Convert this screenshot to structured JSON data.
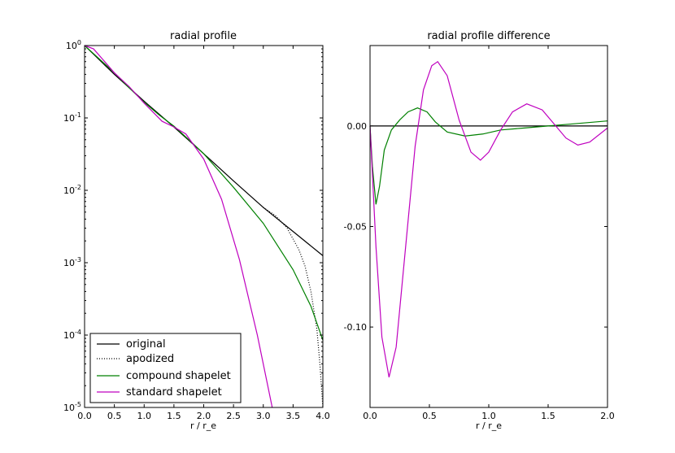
{
  "chart_data": [
    {
      "type": "line",
      "title": "radial profile",
      "xlabel": "r / r_e",
      "ylabel": "",
      "xlim": [
        0.0,
        4.0
      ],
      "ylim": [
        1e-05,
        1
      ],
      "yscale": "log",
      "grid": false,
      "legend_position": "bottom-left",
      "x_ticks": [
        "0.0",
        "0.5",
        "1.0",
        "1.5",
        "2.0",
        "2.5",
        "3.0",
        "3.5",
        "4.0"
      ],
      "y_ticks": [
        {
          "mant": "10",
          "exp": "0"
        },
        {
          "mant": "10",
          "exp": "-1"
        },
        {
          "mant": "10",
          "exp": "-2"
        },
        {
          "mant": "10",
          "exp": "-3"
        },
        {
          "mant": "10",
          "exp": "-4"
        },
        {
          "mant": "10",
          "exp": "-5"
        }
      ],
      "series": [
        {
          "name": "original",
          "color": "#000000",
          "style": "solid",
          "x": [
            0.0,
            0.5,
            1.0,
            1.5,
            2.0,
            2.5,
            3.0,
            3.5,
            4.0
          ],
          "y": [
            1.0,
            0.4,
            0.17,
            0.075,
            0.032,
            0.0135,
            0.0058,
            0.0027,
            0.00125
          ]
        },
        {
          "name": "apodized",
          "color": "#000000",
          "style": "dotted",
          "x": [
            3.0,
            3.2,
            3.4,
            3.6,
            3.7,
            3.8,
            3.9,
            3.95,
            4.0
          ],
          "y": [
            0.0058,
            0.0045,
            0.003,
            0.0015,
            0.0009,
            0.0004,
            0.00012,
            4e-05,
            1e-05
          ]
        },
        {
          "name": "compound shapelet",
          "color": "#008000",
          "style": "solid",
          "x": [
            0.0,
            0.25,
            0.5,
            0.75,
            1.0,
            1.25,
            1.5,
            1.75,
            2.0,
            2.5,
            3.0,
            3.5,
            3.8,
            4.0
          ],
          "y": [
            1.0,
            0.65,
            0.42,
            0.26,
            0.165,
            0.11,
            0.077,
            0.05,
            0.032,
            0.011,
            0.0035,
            0.0008,
            0.00025,
            8.5e-05
          ]
        },
        {
          "name": "standard shapelet",
          "color": "#bf00bf",
          "style": "solid",
          "x": [
            0.0,
            0.15,
            0.3,
            0.5,
            0.75,
            1.0,
            1.3,
            1.5,
            1.7,
            2.0,
            2.3,
            2.6,
            2.9,
            3.15
          ],
          "y": [
            1.0,
            0.9,
            0.65,
            0.42,
            0.27,
            0.16,
            0.09,
            0.075,
            0.06,
            0.027,
            0.0075,
            0.0011,
            0.0001,
            1e-05
          ]
        }
      ]
    },
    {
      "type": "line",
      "title": "radial profile difference",
      "xlabel": "r / r_e",
      "ylabel": "",
      "xlim": [
        0.0,
        2.0
      ],
      "ylim": [
        -0.14,
        0.04
      ],
      "grid": false,
      "x_ticks": [
        "0.0",
        "0.5",
        "1.0",
        "1.5",
        "2.0"
      ],
      "y_ticks": [
        "0.00",
        "-0.05",
        "-0.10"
      ],
      "series": [
        {
          "name": "original",
          "color": "#000000",
          "style": "solid",
          "x": [
            0.0,
            2.0
          ],
          "y": [
            0.0,
            0.0
          ]
        },
        {
          "name": "compound shapelet",
          "color": "#008000",
          "style": "solid",
          "x": [
            0.0,
            0.02,
            0.05,
            0.08,
            0.12,
            0.18,
            0.25,
            0.32,
            0.4,
            0.48,
            0.55,
            0.65,
            0.8,
            0.95,
            1.1,
            1.3,
            1.5,
            1.7,
            2.0
          ],
          "y": [
            0.0,
            -0.02,
            -0.039,
            -0.03,
            -0.012,
            -0.002,
            0.003,
            0.007,
            0.009,
            0.007,
            0.002,
            -0.003,
            -0.005,
            -0.004,
            -0.002,
            -0.001,
            0.0,
            0.001,
            0.0025
          ]
        },
        {
          "name": "standard shapelet",
          "color": "#bf00bf",
          "style": "solid",
          "x": [
            0.0,
            0.05,
            0.1,
            0.16,
            0.22,
            0.3,
            0.38,
            0.45,
            0.52,
            0.57,
            0.65,
            0.75,
            0.85,
            0.93,
            1.0,
            1.1,
            1.2,
            1.32,
            1.45,
            1.55,
            1.65,
            1.75,
            1.85,
            2.0
          ],
          "y": [
            0.0,
            -0.06,
            -0.105,
            -0.125,
            -0.11,
            -0.06,
            -0.01,
            0.018,
            0.03,
            0.032,
            0.025,
            0.003,
            -0.013,
            -0.017,
            -0.013,
            -0.002,
            0.007,
            0.011,
            0.008,
            0.001,
            -0.006,
            -0.0095,
            -0.008,
            -0.001
          ]
        }
      ]
    }
  ]
}
